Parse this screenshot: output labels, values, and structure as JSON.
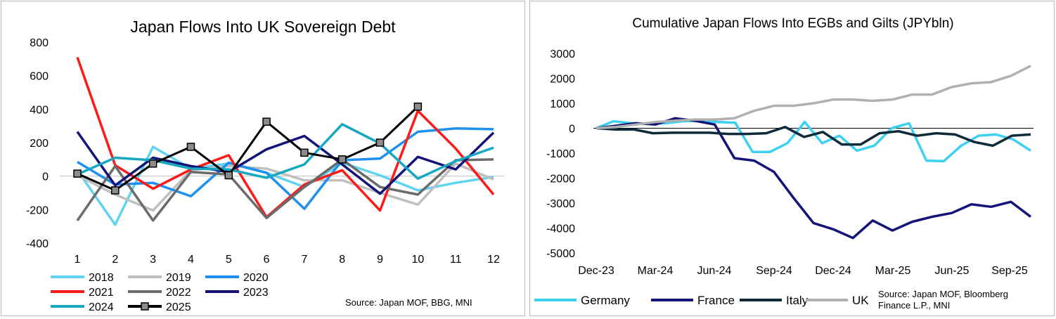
{
  "chart_data": [
    {
      "type": "line",
      "title": "Japan Flows Into UK Sovereign Debt",
      "xlabel": "",
      "ylabel": "",
      "categories": [
        "1",
        "2",
        "3",
        "4",
        "5",
        "6",
        "7",
        "8",
        "9",
        "10",
        "11",
        "12"
      ],
      "ylim": [
        -400,
        800
      ],
      "yticks": [
        "800",
        "600",
        "400",
        "200",
        "0",
        "-200",
        "-400"
      ],
      "source": "Source: Japan MOF, BBG, MNI",
      "legend_position": "bottom",
      "series": [
        {
          "name": "2018",
          "color": "#5fd3f0",
          "values": [
            35,
            -290,
            175,
            45,
            75,
            20,
            -65,
            80,
            5,
            -85,
            -40,
            -5
          ]
        },
        {
          "name": "2019",
          "color": "#bfbfbf",
          "values": [
            5,
            -110,
            -205,
            35,
            60,
            45,
            -25,
            -25,
            -100,
            -170,
            75,
            -20
          ]
        },
        {
          "name": "2020",
          "color": "#1e90f0",
          "values": [
            85,
            -50,
            -40,
            -120,
            80,
            20,
            -195,
            95,
            105,
            265,
            285,
            280
          ]
        },
        {
          "name": "2021",
          "color": "#ff1a1a",
          "values": [
            710,
            65,
            -75,
            40,
            125,
            -245,
            -50,
            35,
            -205,
            390,
            165,
            -110
          ]
        },
        {
          "name": "2022",
          "color": "#6b6b6b",
          "values": [
            -265,
            60,
            -265,
            25,
            10,
            -250,
            -65,
            100,
            -65,
            -110,
            95,
            100
          ]
        },
        {
          "name": "2023",
          "color": "#141478",
          "values": [
            265,
            -55,
            110,
            60,
            25,
            160,
            240,
            70,
            -105,
            115,
            40,
            260
          ]
        },
        {
          "name": "2024",
          "color": "#17a7c1",
          "values": [
            10,
            110,
            95,
            45,
            40,
            -10,
            70,
            310,
            195,
            -15,
            90,
            170
          ]
        },
        {
          "name": "2025",
          "color": "#000000",
          "marker": "square",
          "values": [
            15,
            -85,
            75,
            175,
            5,
            325,
            140,
            100,
            200,
            415,
            null,
            null
          ]
        }
      ]
    },
    {
      "type": "line",
      "title": "Cumulative  Japan Flows Into EGBs and Gilts (JPYbln)",
      "xlabel": "",
      "ylabel": "",
      "ylim": [
        -5000,
        3000
      ],
      "yticks": [
        "3000",
        "2000",
        "1000",
        "0",
        "-1000",
        "-2000",
        "-3000",
        "-4000",
        "-5000"
      ],
      "xtick_labels": [
        "Dec-23",
        "Mar-24",
        "Jun-24",
        "Sep-24",
        "Dec-24",
        "Mar-25",
        "Jun-25",
        "Sep-25"
      ],
      "source": "Source: Japan MOF, Bloomberg Finance L.P., MNI",
      "legend_position": "bottom",
      "x_points": 42,
      "series": [
        {
          "name": "Germany",
          "color": "#3ed0f0",
          "values": [
            0,
            280,
            200,
            180,
            200,
            280,
            300,
            250,
            220,
            -950,
            -950,
            -600,
            250,
            -600,
            -300,
            -900,
            -700,
            0,
            200,
            -1300,
            -1320,
            -700,
            -300,
            -250,
            -450,
            -900
          ]
        },
        {
          "name": "France",
          "color": "#141478",
          "values": [
            0,
            100,
            200,
            150,
            400,
            300,
            150,
            -1200,
            -1300,
            -1750,
            -2800,
            -3800,
            -4050,
            -4400,
            -3700,
            -4100,
            -3750,
            -3550,
            -3400,
            -3050,
            -3150,
            -2950,
            -3550
          ]
        },
        {
          "name": "Italy",
          "color": "#0f2a3a",
          "values": [
            0,
            -50,
            -50,
            -200,
            -180,
            -180,
            -180,
            -230,
            -230,
            -200,
            50,
            -350,
            -150,
            -650,
            -650,
            -200,
            -120,
            -300,
            -200,
            -250,
            -550,
            -700,
            -300,
            -250
          ]
        },
        {
          "name": "UK",
          "color": "#b0b0b0",
          "values": [
            0,
            50,
            150,
            250,
            300,
            350,
            350,
            400,
            700,
            900,
            900,
            1000,
            1150,
            1150,
            1100,
            1150,
            1350,
            1350,
            1650,
            1800,
            1850,
            2100,
            2500
          ]
        }
      ]
    }
  ]
}
